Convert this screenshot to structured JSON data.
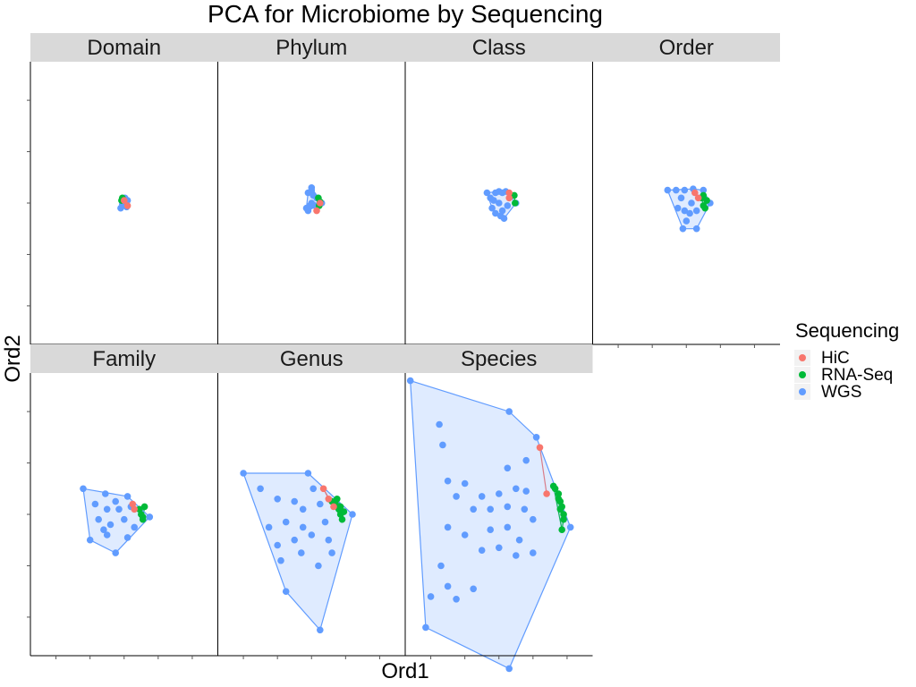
{
  "chart_data": {
    "type": "scatter",
    "title": "PCA for Microbiome by Sequencing",
    "xlabel": "Ord1",
    "ylabel": "Ord2",
    "xlim": [
      -0.55,
      0.55
    ],
    "ylim": [
      -0.55,
      0.55
    ],
    "grid": false,
    "hulls": true,
    "legend": {
      "title": "Sequencing",
      "position": "right",
      "entries": [
        {
          "name": "HiC",
          "color": "#F8766D"
        },
        {
          "name": "RNA-Seq",
          "color": "#00BA38"
        },
        {
          "name": "WGS",
          "color": "#619CFF"
        }
      ]
    },
    "panels": [
      {
        "label": "Domain",
        "series": [
          {
            "name": "HiC",
            "points": [
              [
                0.0,
                0.01
              ],
              [
                0.02,
                -0.01
              ]
            ]
          },
          {
            "name": "RNA-Seq",
            "points": [
              [
                -0.01,
                0.02
              ],
              [
                -0.015,
                0.01
              ]
            ]
          },
          {
            "name": "WGS",
            "points": [
              [
                0,
                0
              ],
              [
                0.01,
                0.005
              ],
              [
                -0.01,
                -0.005
              ],
              [
                0.02,
                0.01
              ],
              [
                -0.02,
                -0.02
              ],
              [
                0.015,
                -0.015
              ],
              [
                0.005,
                0.02
              ],
              [
                -0.005,
                0.015
              ]
            ]
          }
        ]
      },
      {
        "label": "Phylum",
        "series": [
          {
            "name": "HiC",
            "points": [
              [
                0.03,
                -0.03
              ],
              [
                0.05,
                0.0
              ]
            ]
          },
          {
            "name": "RNA-Seq",
            "points": [
              [
                0.04,
                0.02
              ],
              [
                0.05,
                0.005
              ],
              [
                0.045,
                -0.01
              ]
            ]
          },
          {
            "name": "WGS",
            "points": [
              [
                0,
                0.06
              ],
              [
                -0.02,
                0.04
              ],
              [
                0.01,
                0.03
              ],
              [
                -0.03,
                -0.02
              ],
              [
                -0.02,
                -0.03
              ],
              [
                0.02,
                -0.01
              ],
              [
                0.0,
                0.0
              ],
              [
                0.03,
                0.02
              ],
              [
                -0.01,
                -0.01
              ],
              [
                0.06,
                0.0
              ],
              [
                0.0,
                0.05
              ]
            ]
          }
        ]
      },
      {
        "label": "Class",
        "series": [
          {
            "name": "HiC",
            "points": [
              [
                0.06,
                0.04
              ],
              [
                0.06,
                0.02
              ]
            ]
          },
          {
            "name": "RNA-Seq",
            "points": [
              [
                0.09,
                0.03
              ],
              [
                0.095,
                0.0
              ]
            ]
          },
          {
            "name": "WGS",
            "points": [
              [
                -0.07,
                0.04
              ],
              [
                -0.05,
                0.02
              ],
              [
                -0.02,
                0.04
              ],
              [
                0.0,
                0.045
              ],
              [
                0.02,
                0.04
              ],
              [
                0.04,
                0.045
              ],
              [
                -0.04,
                -0.02
              ],
              [
                -0.02,
                -0.04
              ],
              [
                0.01,
                -0.05
              ],
              [
                0.03,
                -0.06
              ],
              [
                0.1,
                0.0
              ],
              [
                0.05,
                -0.01
              ],
              [
                0.0,
                0.0
              ],
              [
                -0.03,
                0.01
              ],
              [
                0.02,
                -0.03
              ]
            ]
          }
        ]
      },
      {
        "label": "Order",
        "series": [
          {
            "name": "HiC",
            "points": [
              [
                0.05,
                0.04
              ],
              [
                0.07,
                0.02
              ]
            ]
          },
          {
            "name": "RNA-Seq",
            "points": [
              [
                0.1,
                0.03
              ],
              [
                0.12,
                0.01
              ],
              [
                0.1,
                -0.01
              ],
              [
                0.11,
                -0.02
              ],
              [
                0.09,
                0.02
              ]
            ]
          },
          {
            "name": "WGS",
            "points": [
              [
                -0.11,
                0.05
              ],
              [
                -0.06,
                0.05
              ],
              [
                -0.01,
                0.05
              ],
              [
                0.04,
                0.055
              ],
              [
                0.1,
                0.05
              ],
              [
                -0.05,
                -0.02
              ],
              [
                0.0,
                -0.07
              ],
              [
                -0.02,
                -0.1
              ],
              [
                0.06,
                -0.1
              ],
              [
                0.14,
                0.0
              ],
              [
                0.03,
                0.0
              ],
              [
                -0.03,
                0.02
              ],
              [
                0.02,
                -0.04
              ],
              [
                -0.01,
                -0.03
              ],
              [
                0.06,
                -0.03
              ]
            ]
          }
        ]
      },
      {
        "label": "Family",
        "series": [
          {
            "name": "HiC",
            "points": [
              [
                0.05,
                0.04
              ],
              [
                0.06,
                0.02
              ]
            ]
          },
          {
            "name": "RNA-Seq",
            "points": [
              [
                0.09,
                0.02
              ],
              [
                0.1,
                0.0
              ],
              [
                0.11,
                -0.01
              ],
              [
                0.12,
                0.03
              ],
              [
                0.11,
                -0.02
              ]
            ]
          },
          {
            "name": "WGS",
            "points": [
              [
                -0.24,
                0.1
              ],
              [
                -0.11,
                0.08
              ],
              [
                -0.17,
                0.04
              ],
              [
                -0.05,
                0.05
              ],
              [
                0.02,
                0.07
              ],
              [
                -0.1,
                0.02
              ],
              [
                -0.03,
                0.02
              ],
              [
                0.04,
                0.03
              ],
              [
                -0.15,
                -0.02
              ],
              [
                -0.08,
                -0.04
              ],
              [
                0.0,
                -0.02
              ],
              [
                0.06,
                -0.05
              ],
              [
                0.15,
                -0.01
              ],
              [
                -0.2,
                -0.1
              ],
              [
                -0.1,
                -0.08
              ],
              [
                0.02,
                -0.09
              ],
              [
                -0.05,
                -0.15
              ],
              [
                -0.12,
                -0.06
              ]
            ]
          }
        ]
      },
      {
        "label": "Genus",
        "series": [
          {
            "name": "HiC",
            "points": [
              [
                0.07,
                0.1
              ],
              [
                0.13,
                0.03
              ],
              [
                0.1,
                0.06
              ]
            ]
          },
          {
            "name": "RNA-Seq",
            "points": [
              [
                0.12,
                0.05
              ],
              [
                0.14,
                0.04
              ],
              [
                0.16,
                0.02
              ],
              [
                0.17,
                0.0
              ],
              [
                0.18,
                -0.02
              ],
              [
                0.15,
                0.06
              ],
              [
                0.17,
                0.03
              ],
              [
                0.19,
                0.01
              ]
            ]
          },
          {
            "name": "WGS",
            "points": [
              [
                -0.4,
                0.16
              ],
              [
                -0.3,
                0.1
              ],
              [
                -0.2,
                0.06
              ],
              [
                -0.02,
                0.16
              ],
              [
                0.01,
                0.1
              ],
              [
                -0.1,
                0.05
              ],
              [
                -0.05,
                0.02
              ],
              [
                0.05,
                0.04
              ],
              [
                -0.15,
                -0.03
              ],
              [
                -0.05,
                -0.05
              ],
              [
                0.08,
                -0.03
              ],
              [
                0.24,
                0.0
              ],
              [
                -0.25,
                -0.05
              ],
              [
                -0.2,
                -0.12
              ],
              [
                -0.1,
                -0.1
              ],
              [
                0.0,
                -0.08
              ],
              [
                0.1,
                -0.1
              ],
              [
                -0.18,
                -0.18
              ],
              [
                -0.06,
                -0.15
              ],
              [
                0.04,
                -0.2
              ],
              [
                -0.15,
                -0.3
              ],
              [
                0.05,
                -0.45
              ],
              [
                0.12,
                -0.15
              ]
            ]
          }
        ]
      },
      {
        "label": "Species",
        "series": [
          {
            "name": "HiC",
            "points": [
              [
                0.24,
                0.26
              ],
              [
                0.28,
                0.08
              ]
            ]
          },
          {
            "name": "RNA-Seq",
            "points": [
              [
                0.32,
                0.11
              ],
              [
                0.35,
                0.08
              ],
              [
                0.36,
                0.05
              ],
              [
                0.37,
                0.03
              ],
              [
                0.38,
                -0.02
              ],
              [
                0.37,
                -0.06
              ],
              [
                0.33,
                0.1
              ],
              [
                0.35,
                0.06
              ],
              [
                0.38,
                0.0
              ],
              [
                0.36,
                0.02
              ]
            ]
          },
          {
            "name": "WGS",
            "points": [
              [
                -0.52,
                0.52
              ],
              [
                -0.35,
                0.35
              ],
              [
                -0.33,
                0.27
              ],
              [
                -0.2,
                0.12
              ],
              [
                -0.1,
                0.07
              ],
              [
                0.0,
                0.08
              ],
              [
                0.05,
                0.18
              ],
              [
                0.1,
                0.1
              ],
              [
                0.16,
                0.09
              ],
              [
                0.06,
                0.4
              ],
              [
                0.22,
                0.3
              ],
              [
                -0.3,
                0.13
              ],
              [
                -0.25,
                0.07
              ],
              [
                -0.15,
                0.02
              ],
              [
                -0.05,
                0.02
              ],
              [
                0.05,
                0.03
              ],
              [
                0.15,
                0.02
              ],
              [
                0.2,
                -0.02
              ],
              [
                -0.3,
                -0.05
              ],
              [
                -0.2,
                -0.08
              ],
              [
                -0.05,
                -0.06
              ],
              [
                0.05,
                -0.05
              ],
              [
                0.12,
                -0.1
              ],
              [
                0.2,
                -0.15
              ],
              [
                -0.34,
                -0.2
              ],
              [
                -0.1,
                -0.14
              ],
              [
                0.0,
                -0.13
              ],
              [
                0.1,
                -0.16
              ],
              [
                -0.3,
                -0.28
              ],
              [
                -0.25,
                -0.33
              ],
              [
                -0.15,
                -0.29
              ],
              [
                -0.4,
                -0.32
              ],
              [
                -0.43,
                -0.44
              ],
              [
                0.06,
                -0.6
              ],
              [
                0.42,
                -0.05
              ],
              [
                0.16,
                0.21
              ]
            ]
          }
        ]
      }
    ]
  }
}
